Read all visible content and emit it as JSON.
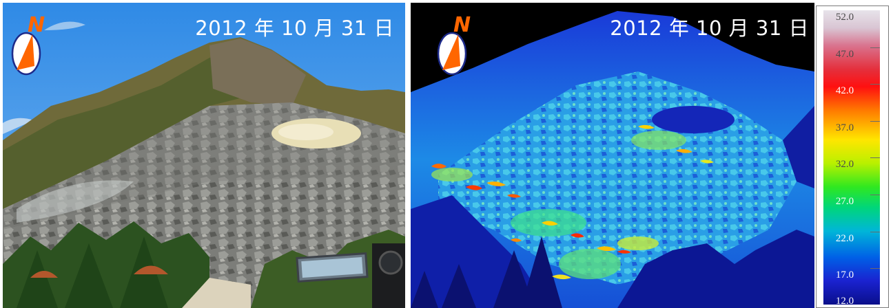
{
  "photo": {
    "date": "2012 年 10 月 31 日",
    "compass_letter": "N",
    "compass_icon": "north-arrow-compass"
  },
  "thermal": {
    "date": "2012 年 10 月 31 日",
    "compass_letter": "N",
    "compass_icon": "north-arrow-compass"
  },
  "scale": {
    "labels": [
      "52.0",
      "47.0",
      "42.0",
      "37.0",
      "32.0",
      "27.0",
      "22.0",
      "17.0",
      "12.0"
    ],
    "colors": {
      "top": "#e7e3ea",
      "red": "#ff1010",
      "yellow": "#ffe600",
      "green": "#30e820",
      "cyan": "#00b6d8",
      "blue": "#1a22d0",
      "bottom": "#0a0f8a"
    }
  }
}
